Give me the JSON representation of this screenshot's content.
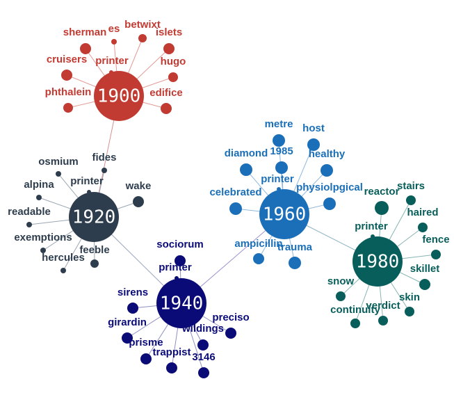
{
  "nodes": [
    {
      "label": "1900",
      "leaves": [
        "sherman",
        "es",
        "betwixt",
        "islets",
        "printer",
        "cruisers",
        "hugo",
        "phthalein",
        "edifice"
      ]
    },
    {
      "label": "1920",
      "leaves": [
        "fides",
        "osmium",
        "alpina",
        "printer",
        "wake",
        "readable",
        "exemptions",
        "feeble",
        "hercules"
      ]
    },
    {
      "label": "1940",
      "leaves": [
        "sociorum",
        "printer",
        "sirens",
        "girardin",
        "prisme",
        "trappist",
        "3146",
        "wildings",
        "preciso"
      ]
    },
    {
      "label": "1960",
      "leaves": [
        "metre",
        "host",
        "1985",
        "diamond",
        "healthy",
        "printer",
        "celebrated",
        "physiolpgical",
        "ampicillin",
        "trauma"
      ]
    },
    {
      "label": "1980",
      "leaves": [
        "reactor",
        "stairs",
        "haired",
        "printer",
        "fence",
        "skillet",
        "skin",
        "verdict",
        "snow",
        "continuity"
      ]
    }
  ]
}
